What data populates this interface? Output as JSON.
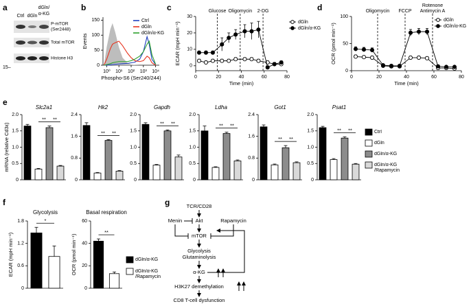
{
  "panel_labels": [
    "a",
    "b",
    "c",
    "d",
    "e",
    "f",
    "g"
  ],
  "blot": {
    "columns": [
      [
        "Ctrl"
      ],
      [
        "dGln"
      ],
      [
        "dGln/",
        "α-KG"
      ]
    ],
    "rows": [
      [
        "P-mTOR",
        "(Ser2448)"
      ],
      [
        "Total mTOR"
      ],
      [
        "Histone H3"
      ]
    ],
    "marker": "15–"
  },
  "diagram": {
    "nodes": [
      "TCR/CD28",
      "Akt",
      "Menin",
      "Rapamycin",
      "mTOR",
      "Glycolysis",
      "Glutaminolysis",
      "α-KG",
      "H3K27 demethylation",
      "CD8 T-cell dysfunction"
    ]
  },
  "legends": [
    {
      "entries": [
        {
          "name": "Ctrl",
          "color": "#000000"
        },
        {
          "name": "dGln",
          "color": "#ffffff"
        },
        {
          "name": "dGln/α-KG",
          "color": "#8c8c8c"
        },
        {
          "name": "dGln/α-KG /Rapamycin",
          "color": "#d9d9d9"
        }
      ]
    },
    {
      "entries": [
        {
          "name": "dGln/α-KG",
          "color": "#000000"
        },
        {
          "name": "dGln/α-KG /Rapamycin",
          "color": "#ffffff"
        }
      ]
    }
  ],
  "chart_data": [
    {
      "type": "line",
      "ylabel": "Events",
      "xlabel": "Phospho-S6 (Ser240/244)",
      "xlog": true,
      "xlim": [
        0.5,
        20000
      ],
      "xticks": [
        {
          "value": 1,
          "label": "10⁰"
        },
        {
          "value": 10,
          "label": "10¹"
        },
        {
          "value": 100,
          "label": "10²"
        },
        {
          "value": 1000,
          "label": "10³"
        },
        {
          "value": 10000,
          "label": "10⁴"
        }
      ],
      "ylim": [
        0,
        160
      ],
      "yticks": [
        0,
        50,
        100,
        150
      ],
      "legend": "upper right",
      "x": [
        0.6,
        1,
        2,
        3,
        5,
        10,
        20,
        50,
        100,
        200,
        500,
        1000,
        2000,
        3000,
        5000,
        10000
      ],
      "background": {
        "color": "#bdbdbd",
        "values": [
          0,
          60,
          120,
          140,
          110,
          60,
          25,
          8,
          3,
          1,
          0,
          0,
          0,
          0,
          0,
          0
        ]
      },
      "series": [
        {
          "name": "Ctrl",
          "color": "#1f3fbf",
          "values": [
            0,
            0,
            1,
            2,
            3,
            4,
            5,
            6,
            8,
            10,
            20,
            45,
            95,
            70,
            20,
            2
          ]
        },
        {
          "name": "dGln",
          "color": "#e8331e",
          "values": [
            0,
            20,
            55,
            70,
            75,
            80,
            65,
            40,
            25,
            15,
            12,
            15,
            30,
            25,
            8,
            0
          ]
        },
        {
          "name": "dGln/α-KG",
          "color": "#2ca02c",
          "values": [
            0,
            2,
            5,
            8,
            10,
            12,
            12,
            12,
            15,
            20,
            30,
            45,
            70,
            80,
            35,
            3
          ]
        }
      ]
    },
    {
      "type": "line",
      "ylabel": "ECAR (mpH min⁻¹)",
      "xlabel": "Time (min)",
      "xlim": [
        0,
        80
      ],
      "xticks": [
        0,
        20,
        40,
        60,
        80
      ],
      "ylim": [
        -3,
        30
      ],
      "yticks": [
        0,
        10,
        20,
        30
      ],
      "legend": "outside right",
      "x": [
        3,
        9,
        15,
        23,
        29,
        35,
        43,
        49,
        55,
        63,
        69,
        75
      ],
      "markers": [
        {
          "x": 19,
          "label": [
            "Glucose"
          ]
        },
        {
          "x": 39,
          "label": [
            "Oligomycin"
          ]
        },
        {
          "x": 59,
          "label": [
            "2-DG"
          ]
        }
      ],
      "series": [
        {
          "name": "dGln",
          "color": "#000000",
          "marker": "open",
          "values": [
            3,
            2,
            3,
            3,
            3,
            4,
            4,
            4,
            3,
            2,
            1,
            1
          ],
          "errors": [
            1,
            1,
            1,
            1,
            1,
            1,
            1,
            1,
            1,
            1,
            1,
            1
          ]
        },
        {
          "name": "dGln/α-KG",
          "color": "#000000",
          "marker": "filled",
          "values": [
            8,
            8,
            8,
            13,
            17,
            19,
            21,
            21,
            22,
            -1,
            1,
            2
          ],
          "errors": [
            1,
            1,
            1,
            4,
            3,
            3,
            4,
            5,
            5,
            1,
            1,
            1
          ]
        }
      ]
    },
    {
      "type": "line",
      "ylabel": "OCR (pmol min⁻¹)",
      "xlabel": "Time (min)",
      "xlim": [
        0,
        80
      ],
      "xticks": [
        0,
        20,
        40,
        60,
        80
      ],
      "ylim": [
        0,
        100
      ],
      "yticks": [
        0,
        50,
        100
      ],
      "legend": "upper right",
      "x": [
        3,
        9,
        15,
        23,
        29,
        35,
        43,
        49,
        55,
        63,
        69,
        75
      ],
      "markers": [
        {
          "x": 19,
          "label": [
            "Oligomycin"
          ]
        },
        {
          "x": 39,
          "label": [
            "FCCP"
          ]
        },
        {
          "x": 59,
          "label": [
            "Rotenone",
            "Antimycin A"
          ]
        }
      ],
      "series": [
        {
          "name": "dGln",
          "color": "#000000",
          "marker": "open",
          "values": [
            26,
            25,
            24,
            9,
            8,
            8,
            24,
            24,
            23,
            5,
            5,
            4
          ],
          "errors": [
            3,
            3,
            3,
            2,
            2,
            2,
            3,
            3,
            3,
            2,
            2,
            2
          ]
        },
        {
          "name": "dGln/α-KG",
          "color": "#000000",
          "marker": "filled",
          "values": [
            40,
            39,
            38,
            10,
            9,
            9,
            70,
            72,
            72,
            8,
            7,
            7
          ],
          "errors": [
            4,
            4,
            4,
            2,
            2,
            2,
            6,
            6,
            6,
            2,
            2,
            2
          ]
        }
      ]
    },
    {
      "type": "bar",
      "title": "Slc2a1",
      "ylabel": "mRNA (relative Cd3ε)",
      "ylim": [
        0,
        2
      ],
      "yticks": [
        0,
        0.5,
        {
          "value": 1,
          "label": "1.0"
        },
        1.5,
        {
          "value": 2,
          "label": "2.0"
        }
      ],
      "values": [
        1.65,
        0.33,
        1.6,
        0.42
      ],
      "errors": [
        0.05,
        0.02,
        0.05,
        0.02
      ],
      "annotations": [
        "**",
        "**"
      ]
    },
    {
      "type": "bar",
      "title": "Hk2",
      "ylim": [
        0,
        2.4
      ],
      "yticks": [
        0,
        0.8,
        1.6,
        2.4
      ],
      "values": [
        2.0,
        0.25,
        1.45,
        0.32
      ],
      "errors": [
        0.1,
        0.02,
        0.03,
        0.02
      ],
      "annotations": [
        "**",
        "**"
      ]
    },
    {
      "type": "bar",
      "title": "Gapdh",
      "ylim": [
        0,
        2
      ],
      "yticks": [
        0,
        0.5,
        {
          "value": 1,
          "label": "1.0"
        },
        1.5,
        {
          "value": 2,
          "label": "2.0"
        }
      ],
      "values": [
        1.7,
        0.45,
        1.5,
        0.7
      ],
      "errors": [
        0.05,
        0.02,
        0.03,
        0.06
      ],
      "annotations": [
        "**",
        "**"
      ]
    },
    {
      "type": "bar",
      "title": "Ldha",
      "ylim": [
        0,
        2
      ],
      "yticks": [
        0,
        0.5,
        {
          "value": 1,
          "label": "1.0"
        },
        1.5,
        {
          "value": 2,
          "label": "2.0"
        }
      ],
      "values": [
        1.5,
        0.38,
        1.42,
        0.58
      ],
      "errors": [
        0.15,
        0.02,
        0.04,
        0.03
      ],
      "annotations": [
        "**",
        "**"
      ]
    },
    {
      "type": "bar",
      "title": "Got1",
      "ylim": [
        0,
        2.4
      ],
      "yticks": [
        0,
        0.8,
        1.6,
        2.4
      ],
      "values": [
        1.95,
        0.55,
        1.18,
        0.63
      ],
      "errors": [
        0.07,
        0.03,
        0.08,
        0.03
      ],
      "annotations": [
        "**",
        "**"
      ]
    },
    {
      "type": "bar",
      "title": "Psat1",
      "ylim": [
        0,
        2
      ],
      "yticks": [
        0,
        0.5,
        {
          "value": 1,
          "label": "1.0"
        },
        1.5,
        {
          "value": 2,
          "label": "2.0"
        }
      ],
      "values": [
        1.6,
        0.62,
        1.28,
        0.48
      ],
      "errors": [
        0.04,
        0.03,
        0.04,
        0.02
      ],
      "annotations": [
        "**",
        "**"
      ]
    },
    {
      "type": "bar",
      "title": "Glycolysis",
      "ylabel": "ECAR (mpH min⁻¹)",
      "ylim": [
        0,
        1.8
      ],
      "yticks": [
        0,
        0.6,
        1.2,
        1.8
      ],
      "values": [
        1.48,
        0.85
      ],
      "errors": [
        0.15,
        0.28
      ],
      "annotations": [
        "*"
      ]
    },
    {
      "type": "bar",
      "title": "Basal respiration",
      "ylabel": "OCR (pmol min⁻¹)",
      "ylim": [
        0,
        60
      ],
      "yticks": [
        0,
        20,
        40,
        60
      ],
      "values": [
        42,
        13
      ],
      "errors": [
        2,
        1.5
      ],
      "annotations": [
        "**"
      ]
    }
  ]
}
